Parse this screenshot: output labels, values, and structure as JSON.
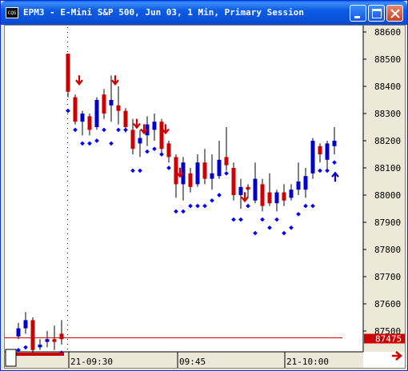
{
  "window": {
    "app_icon_text": "CQG",
    "title": "EPM3 - E-Mini S&P 500, Jun 03, 1 Min, Primary Session",
    "buttons": [
      "minimize",
      "maximize",
      "close"
    ]
  },
  "colors": {
    "up_bar": "#0000CC",
    "down_bar": "#CC0000",
    "marker": "#0000FF",
    "last_price_line": "#CC0000",
    "last_price_tag": "#CC0000",
    "grid_dot": "#000000"
  },
  "icons": {
    "down_arrow": "red-down-arrow-icon",
    "up_arrow": "blue-up-arrow-icon",
    "scroll_right": "red-right-arrow-icon"
  },
  "chart_data": {
    "type": "candlestick",
    "title": "",
    "xlabel": "",
    "ylabel": "",
    "ylim": [
      87380,
      88610
    ],
    "y_ticks": [
      "88600",
      "88500",
      "88400",
      "88300",
      "88200",
      "88100",
      "88000",
      "87900",
      "87800",
      "87700",
      "87600",
      "87500"
    ],
    "x_ticks": [
      "21-09:30",
      "09:45",
      "21-10:00"
    ],
    "last_price": 87475,
    "last_price_label": "87475",
    "pre_session_bars": [
      {
        "o": 87480,
        "h": 87530,
        "l": 87470,
        "c": 87510
      },
      {
        "o": 87510,
        "h": 87570,
        "l": 87490,
        "c": 87540
      },
      {
        "o": 87540,
        "h": 87550,
        "l": 87420,
        "c": 87430
      },
      {
        "o": 87440,
        "h": 87470,
        "l": 87430,
        "c": 87450
      },
      {
        "o": 87460,
        "h": 87500,
        "l": 87440,
        "c": 87470
      },
      {
        "o": 87470,
        "h": 87520,
        "l": 87430,
        "c": 87460
      },
      {
        "o": 87490,
        "h": 87540,
        "l": 87450,
        "c": 87470
      }
    ],
    "bars": [
      {
        "o": 88520,
        "h": 88520,
        "l": 88360,
        "c": 88380
      },
      {
        "o": 88360,
        "h": 88370,
        "l": 88260,
        "c": 88270
      },
      {
        "o": 88270,
        "h": 88310,
        "l": 88220,
        "c": 88300
      },
      {
        "o": 88290,
        "h": 88300,
        "l": 88220,
        "c": 88240
      },
      {
        "o": 88250,
        "h": 88360,
        "l": 88240,
        "c": 88350
      },
      {
        "o": 88370,
        "h": 88390,
        "l": 88280,
        "c": 88300
      },
      {
        "o": 88330,
        "h": 88440,
        "l": 88270,
        "c": 88350
      },
      {
        "o": 88330,
        "h": 88400,
        "l": 88260,
        "c": 88310
      },
      {
        "o": 88310,
        "h": 88320,
        "l": 88230,
        "c": 88250
      },
      {
        "o": 88240,
        "h": 88280,
        "l": 88150,
        "c": 88170
      },
      {
        "o": 88190,
        "h": 88240,
        "l": 88140,
        "c": 88210
      },
      {
        "o": 88220,
        "h": 88290,
        "l": 88180,
        "c": 88260
      },
      {
        "o": 88240,
        "h": 88300,
        "l": 88200,
        "c": 88270
      },
      {
        "o": 88270,
        "h": 88280,
        "l": 88150,
        "c": 88170
      },
      {
        "o": 88190,
        "h": 88200,
        "l": 88120,
        "c": 88140
      },
      {
        "o": 88140,
        "h": 88150,
        "l": 87990,
        "c": 88040
      },
      {
        "o": 88040,
        "h": 88140,
        "l": 87980,
        "c": 88120
      },
      {
        "o": 88080,
        "h": 88100,
        "l": 88010,
        "c": 88030
      },
      {
        "o": 88040,
        "h": 88150,
        "l": 88030,
        "c": 88120
      },
      {
        "o": 88120,
        "h": 88170,
        "l": 88040,
        "c": 88060
      },
      {
        "o": 88060,
        "h": 88150,
        "l": 88020,
        "c": 88080
      },
      {
        "o": 88070,
        "h": 88200,
        "l": 88060,
        "c": 88130
      },
      {
        "o": 88140,
        "h": 88250,
        "l": 88090,
        "c": 88110
      },
      {
        "o": 88100,
        "h": 88120,
        "l": 87980,
        "c": 88000
      },
      {
        "o": 88000,
        "h": 88060,
        "l": 87950,
        "c": 88030
      },
      {
        "o": 88030,
        "h": 88040,
        "l": 87990,
        "c": 88020
      },
      {
        "o": 87980,
        "h": 88120,
        "l": 87970,
        "c": 88060
      },
      {
        "o": 88040,
        "h": 88060,
        "l": 87940,
        "c": 87960
      },
      {
        "o": 88010,
        "h": 88080,
        "l": 87960,
        "c": 87970
      },
      {
        "o": 87970,
        "h": 88020,
        "l": 87940,
        "c": 88010
      },
      {
        "o": 88010,
        "h": 88040,
        "l": 87960,
        "c": 87980
      },
      {
        "o": 87990,
        "h": 88040,
        "l": 87980,
        "c": 88020
      },
      {
        "o": 88020,
        "h": 88120,
        "l": 88000,
        "c": 88050
      },
      {
        "o": 88020,
        "h": 88100,
        "l": 87990,
        "c": 88070
      },
      {
        "o": 88080,
        "h": 88210,
        "l": 88060,
        "c": 88200
      },
      {
        "o": 88180,
        "h": 88190,
        "l": 88120,
        "c": 88150
      },
      {
        "o": 88130,
        "h": 88200,
        "l": 88090,
        "c": 88190
      },
      {
        "o": 88180,
        "h": 88250,
        "l": 88150,
        "c": 88200
      }
    ],
    "markers": [
      [
        0,
        88310
      ],
      [
        1,
        88240
      ],
      [
        2,
        88190
      ],
      [
        3,
        88190
      ],
      [
        4,
        88200
      ],
      [
        5,
        88240
      ],
      [
        6,
        88190
      ],
      [
        7,
        88240
      ],
      [
        8,
        88240
      ],
      [
        9,
        88090
      ],
      [
        10,
        88090
      ],
      [
        11,
        88160
      ],
      [
        12,
        88170
      ],
      [
        13,
        88150
      ],
      [
        14,
        88100
      ],
      [
        15,
        87940
      ],
      [
        16,
        87940
      ],
      [
        17,
        87960
      ],
      [
        18,
        87960
      ],
      [
        19,
        87960
      ],
      [
        20,
        87980
      ],
      [
        21,
        88000
      ],
      [
        22,
        88080
      ],
      [
        23,
        87910
      ],
      [
        24,
        87910
      ],
      [
        25,
        87960
      ],
      [
        26,
        87860
      ],
      [
        27,
        87910
      ],
      [
        28,
        87880
      ],
      [
        29,
        87910
      ],
      [
        30,
        87860
      ],
      [
        31,
        87880
      ],
      [
        32,
        87930
      ],
      [
        33,
        87960
      ],
      [
        34,
        87960
      ],
      [
        35,
        88090
      ],
      [
        36,
        88090
      ],
      [
        37,
        88120
      ]
    ],
    "down_arrow_signals": [
      [
        1,
        88420
      ],
      [
        6,
        88420
      ],
      [
        9,
        88260
      ],
      [
        10,
        88240
      ],
      [
        13,
        88240
      ],
      [
        15,
        88080
      ],
      [
        24,
        87990
      ]
    ],
    "up_arrow_signals": [
      [
        37,
        88070
      ]
    ]
  }
}
